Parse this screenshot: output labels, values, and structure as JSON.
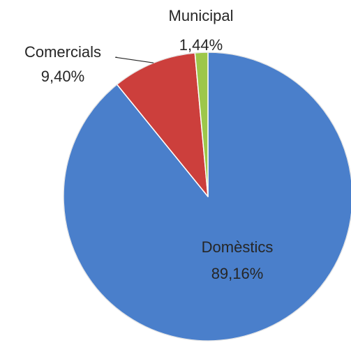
{
  "chart_data": {
    "type": "pie",
    "title": "",
    "start_angle_deg": 0,
    "direction": "clockwise",
    "legend": "none",
    "slices": [
      {
        "name": "Domèstics",
        "value": 89.16,
        "value_label": "89,16%",
        "color": "#4A7FCB",
        "edge_color": "#3A6AAE"
      },
      {
        "name": "Comercials",
        "value": 9.4,
        "value_label": "9,40%",
        "color": "#CC3F3C",
        "edge_color": "#A8312F"
      },
      {
        "name": "Municipal",
        "value": 1.44,
        "value_label": "1,44%",
        "color": "#9DC74A",
        "edge_color": "#7FA63A"
      }
    ]
  }
}
